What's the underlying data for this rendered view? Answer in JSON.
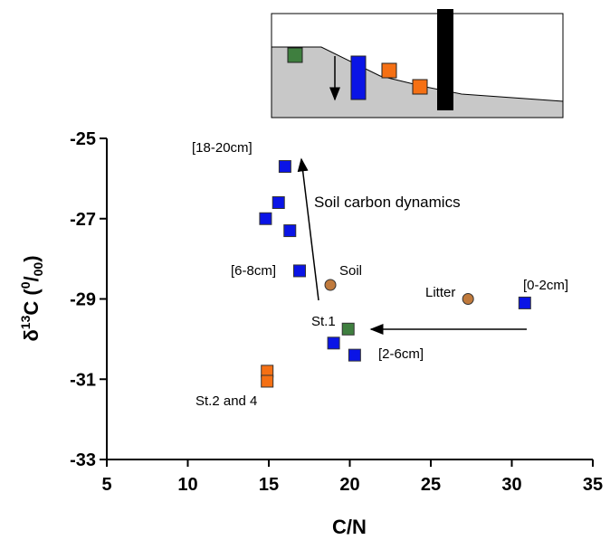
{
  "chart_data": {
    "type": "scatter",
    "xlabel": "C/N",
    "ylabel": {
      "symbol": "δ",
      "sup1": "13",
      "mid": "C (",
      "sup2": "0",
      "slash": "/",
      "sub": "00",
      "end": ")"
    },
    "xlim": [
      5,
      35
    ],
    "xticks": [
      5,
      10,
      15,
      20,
      25,
      30,
      35
    ],
    "ylim": [
      -33,
      -25
    ],
    "yticks": [
      -25,
      -27,
      -29,
      -31,
      -33
    ],
    "series": [
      {
        "color": "#0a14e6",
        "x": [
          16.0,
          15.6,
          14.8,
          16.3,
          16.9,
          19.0,
          20.3,
          30.8
        ],
        "values": [
          -25.7,
          -26.6,
          -27.0,
          -27.3,
          -28.3,
          -30.1,
          -30.4,
          -29.1
        ],
        "marker": "square"
      },
      {
        "color": "#c07a3c",
        "x": [
          18.8,
          27.3
        ],
        "values": [
          -28.65,
          -29.0
        ],
        "marker": "circle"
      },
      {
        "color": "#3f7f3f",
        "x": [
          19.9
        ],
        "values": [
          -29.75
        ],
        "marker": "square"
      },
      {
        "color": "#f57014",
        "x": [
          14.9,
          14.9
        ],
        "values": [
          -30.8,
          -31.05
        ],
        "marker": "square"
      }
    ],
    "annotations": [
      "[18-20cm]",
      "Soil carbon dynamics",
      "[6-8cm]",
      "Soil",
      "Litter",
      "[0-2cm]",
      "St.1",
      "[2-6cm]",
      "St.2 and 4"
    ]
  }
}
